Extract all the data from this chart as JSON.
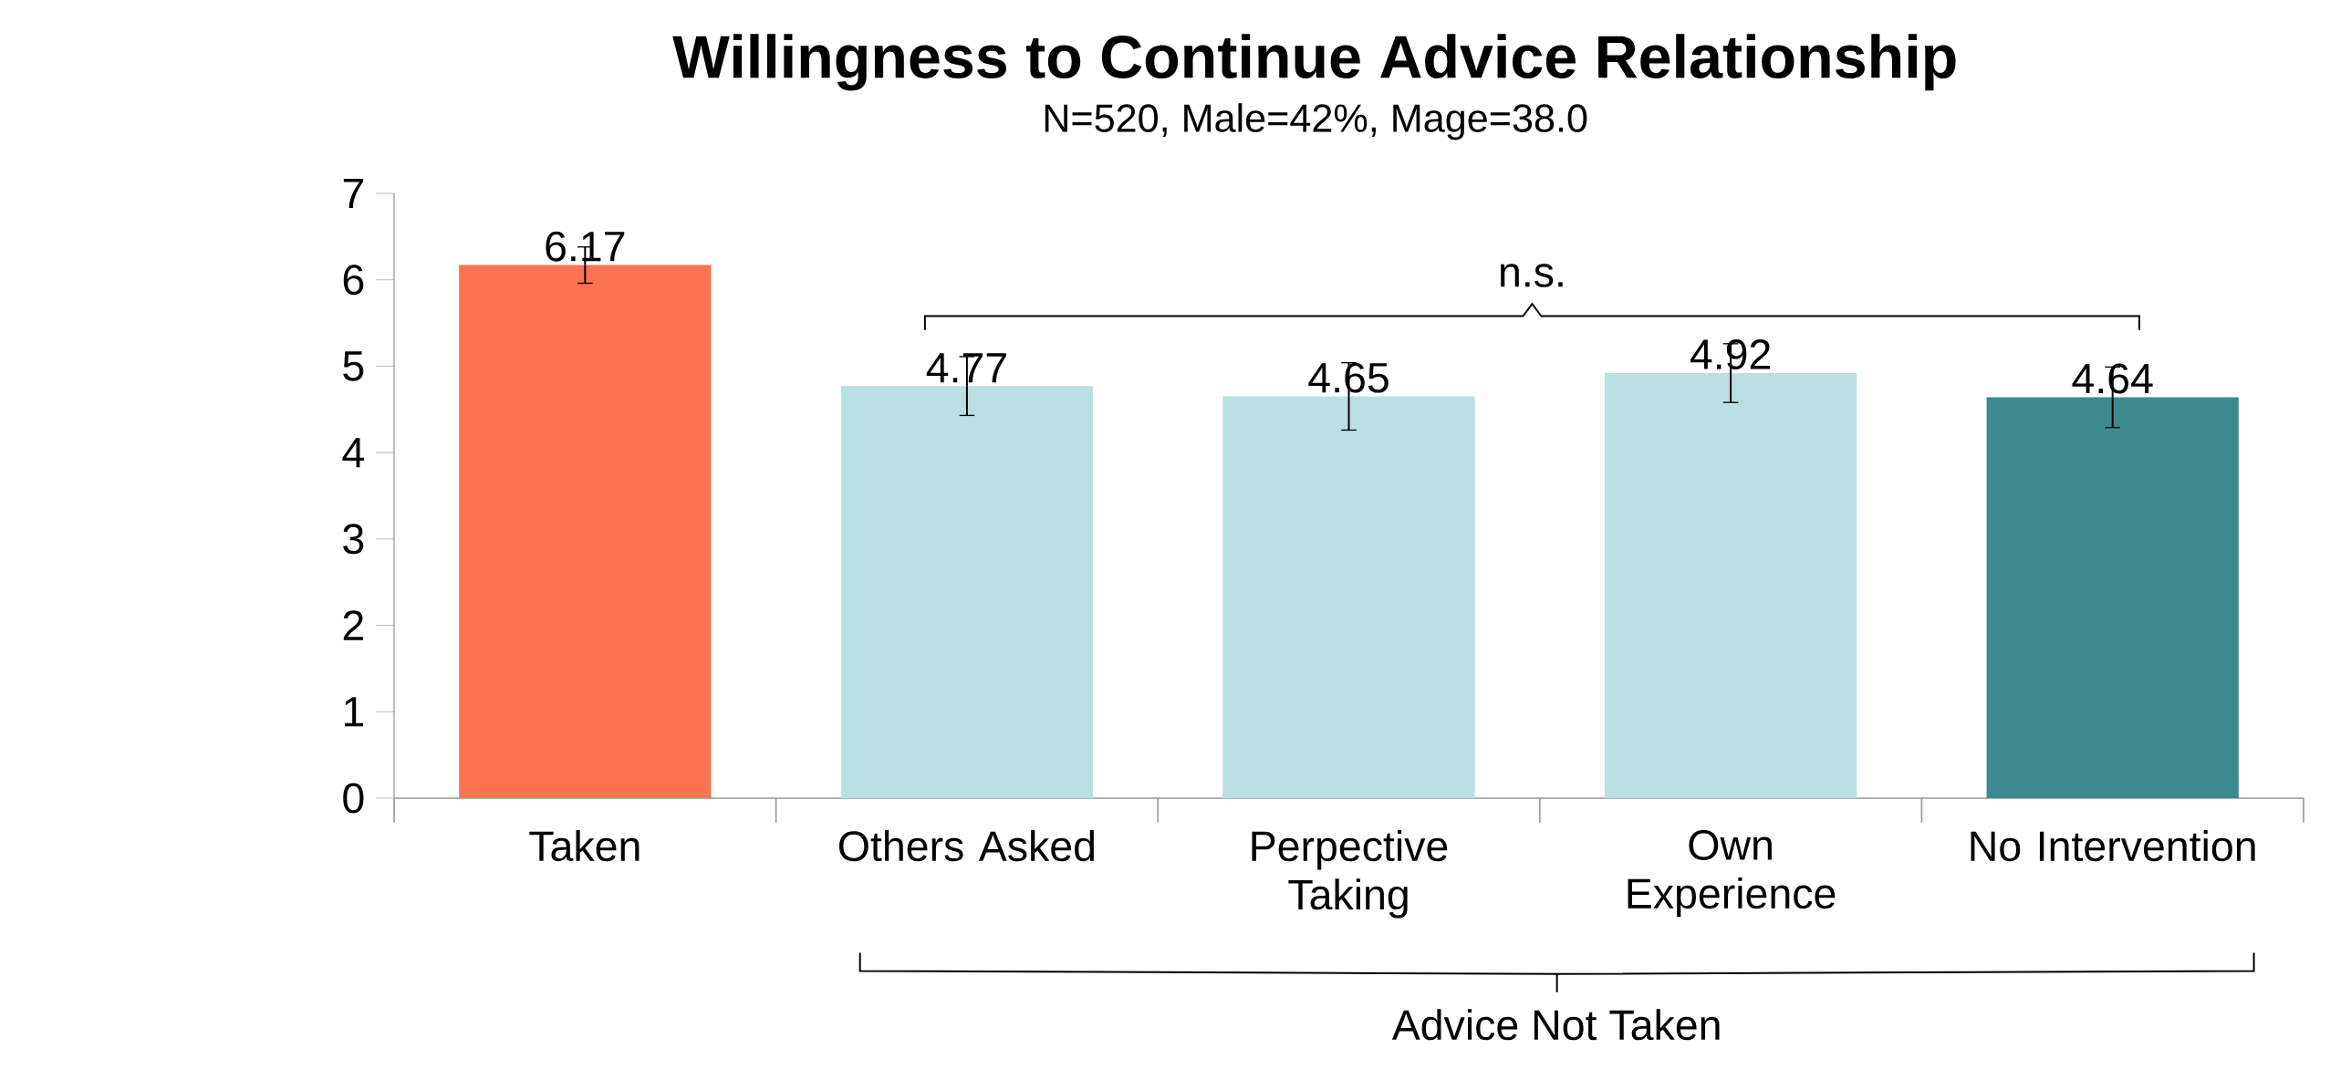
{
  "chart_data": {
    "type": "bar",
    "title": "Willingness to Continue Advice Relationship",
    "subtitle": "N=520, Male=42%, Mage=38.0",
    "categories": [
      "Taken",
      "Others Asked",
      "Perpective Taking",
      "Own Experience",
      "No Intervention"
    ],
    "values": [
      6.17,
      4.77,
      4.65,
      4.92,
      4.64
    ],
    "colors": [
      "#fb7350",
      "#bbe0e3",
      "#bbe0e3",
      "#bbe0e3",
      "#3e8a92"
    ],
    "errors": [
      0.21,
      0.34,
      0.39,
      0.34,
      0.35
    ],
    "ylim": [
      0,
      7
    ],
    "yticks": [
      0,
      1,
      2,
      3,
      4,
      5,
      6,
      7
    ],
    "data_labels": true,
    "annotations": [
      "n.s.",
      "Advice Not Taken"
    ]
  }
}
